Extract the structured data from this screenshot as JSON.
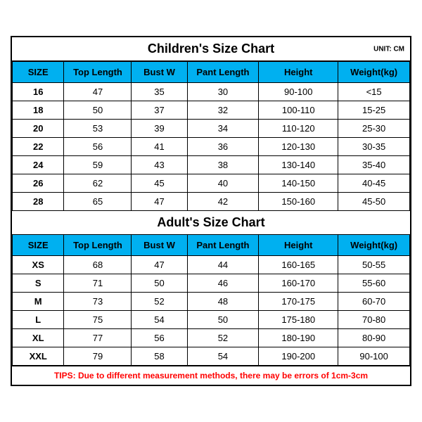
{
  "children": {
    "title": "Children's Size Chart",
    "unit": "UNIT: CM",
    "columns": [
      "SIZE",
      "Top Length",
      "Bust W",
      "Pant Length",
      "Height",
      "Weight(kg)"
    ],
    "rows": [
      [
        "16",
        "47",
        "35",
        "30",
        "90-100",
        "<15"
      ],
      [
        "18",
        "50",
        "37",
        "32",
        "100-110",
        "15-25"
      ],
      [
        "20",
        "53",
        "39",
        "34",
        "110-120",
        "25-30"
      ],
      [
        "22",
        "56",
        "41",
        "36",
        "120-130",
        "30-35"
      ],
      [
        "24",
        "59",
        "43",
        "38",
        "130-140",
        "35-40"
      ],
      [
        "26",
        "62",
        "45",
        "40",
        "140-150",
        "40-45"
      ],
      [
        "28",
        "65",
        "47",
        "42",
        "150-160",
        "45-50"
      ]
    ]
  },
  "adult": {
    "title": "Adult's Size Chart",
    "columns": [
      "SIZE",
      "Top Length",
      "Bust W",
      "Pant Length",
      "Height",
      "Weight(kg)"
    ],
    "rows": [
      [
        "XS",
        "68",
        "47",
        "44",
        "160-165",
        "50-55"
      ],
      [
        "S",
        "71",
        "50",
        "46",
        "160-170",
        "55-60"
      ],
      [
        "M",
        "73",
        "52",
        "48",
        "170-175",
        "60-70"
      ],
      [
        "L",
        "75",
        "54",
        "50",
        "175-180",
        "70-80"
      ],
      [
        "XL",
        "77",
        "56",
        "52",
        "180-190",
        "80-90"
      ],
      [
        "XXL",
        "79",
        "58",
        "54",
        "190-200",
        "90-100"
      ]
    ]
  },
  "tips": "TIPS: Due to different measurement methods, there may be errors of 1cm-3cm",
  "style": {
    "header_bg": "#00b0f0",
    "border_color": "#000000",
    "tips_color": "#ff0000",
    "background": "#ffffff",
    "title_fontsize": 18,
    "body_fontsize": 13
  }
}
